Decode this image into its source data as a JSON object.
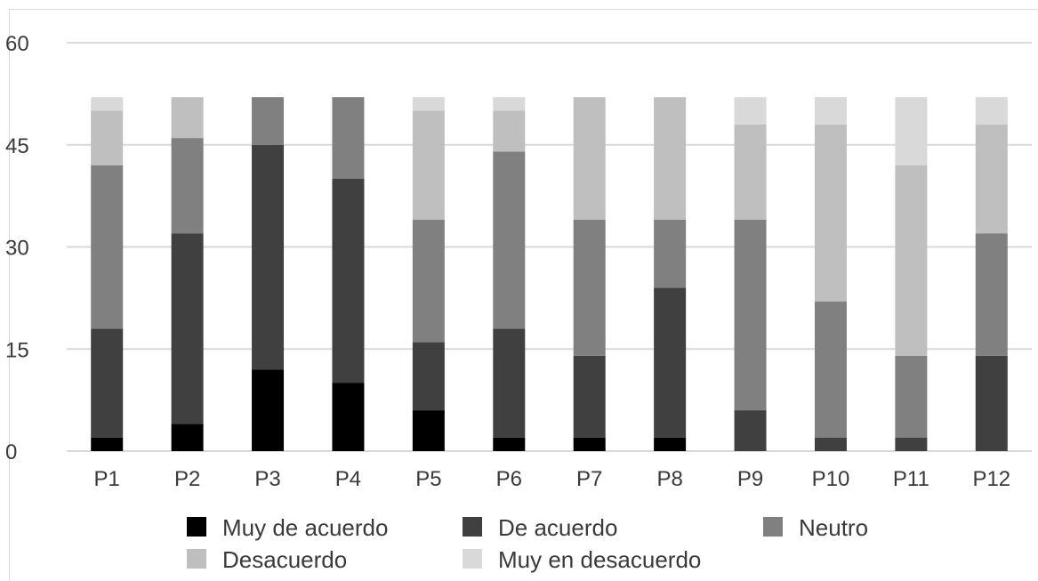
{
  "chart_data": {
    "type": "bar",
    "stacked": true,
    "categories": [
      "P1",
      "P2",
      "P3",
      "P4",
      "P5",
      "P6",
      "P7",
      "P8",
      "P9",
      "P10",
      "P11",
      "P12"
    ],
    "series": [
      {
        "name": "Muy de acuerdo",
        "color": "#000000",
        "values": [
          2,
          4,
          12,
          10,
          6,
          2,
          2,
          2,
          0,
          0,
          0,
          0
        ]
      },
      {
        "name": "De acuerdo",
        "color": "#404040",
        "values": [
          16,
          28,
          33,
          30,
          10,
          16,
          12,
          22,
          6,
          2,
          2,
          14
        ]
      },
      {
        "name": "Neutro",
        "color": "#808080",
        "values": [
          24,
          14,
          7,
          12,
          18,
          26,
          20,
          10,
          28,
          20,
          12,
          18
        ]
      },
      {
        "name": "Desacuerdo",
        "color": "#bfbfbf",
        "values": [
          8,
          6,
          0,
          0,
          16,
          6,
          18,
          18,
          14,
          26,
          28,
          16
        ]
      },
      {
        "name": "Muy en desacuerdo",
        "color": "#d9d9d9",
        "values": [
          2,
          0,
          0,
          0,
          2,
          2,
          0,
          0,
          4,
          4,
          10,
          4
        ]
      }
    ],
    "ylim": [
      0,
      60
    ],
    "yticks": [
      "0",
      "15",
      "30",
      "45",
      "60"
    ],
    "grid": true,
    "legend_position": "bottom"
  }
}
